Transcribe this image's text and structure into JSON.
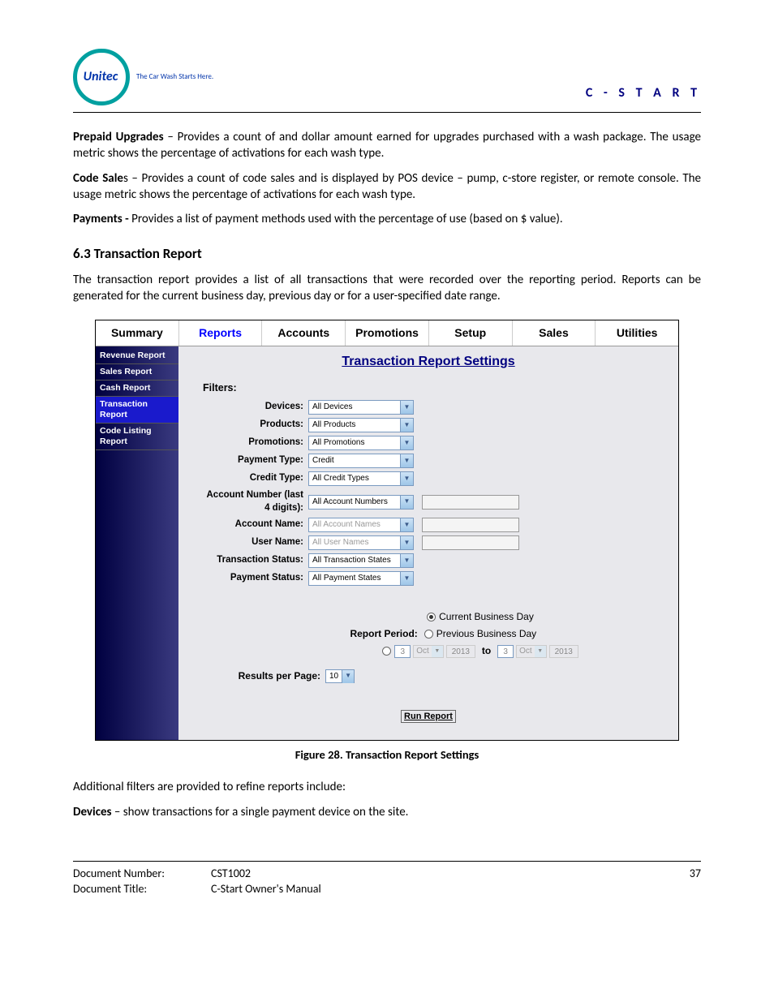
{
  "header": {
    "logo_text": "Unitec",
    "tagline": "The Car Wash Starts Here.",
    "right_text": "C - S T A R T"
  },
  "body": {
    "p1_bold": "Prepaid Upgrades",
    "p1_text": " – Provides a count of and dollar amount earned for upgrades purchased with a wash package. The usage metric shows the percentage of activations for each wash type.",
    "p2_bold": "Code Sale",
    "p2_text": "s – Provides a count of code sales and is displayed by POS device – pump, c-store register, or remote console. The usage metric shows the percentage of activations for each wash type.",
    "p3_bold": "Payments - ",
    "p3_text": "Provides a list of payment methods used with the percentage of use (based on $ value).",
    "h2": "6.3   Transaction Report",
    "p4": "The transaction report provides a list of all transactions that were recorded over the reporting period. Reports can be generated for the current business day, previous day or for a user-specified date range.",
    "p5": "Additional filters are provided to refine reports include:",
    "p6_bold": "Devices",
    "p6_text": " – show transactions for a single payment device on the site."
  },
  "screenshot": {
    "tabs": [
      "Summary",
      "Reports",
      "Accounts",
      "Promotions",
      "Setup",
      "Sales",
      "Utilities"
    ],
    "active_tab": 1,
    "sidebar": [
      {
        "label": "Revenue Report",
        "selected": false
      },
      {
        "label": "Sales Report",
        "selected": false
      },
      {
        "label": "Cash Report",
        "selected": false
      },
      {
        "label": "Transaction Report",
        "selected": true
      },
      {
        "label": "Code Listing Report",
        "selected": false
      }
    ],
    "title": "Transaction Report Settings",
    "filters_label": "Filters:",
    "filters": [
      {
        "label": "Devices:",
        "value": "All Devices",
        "extra": false,
        "disabled": false
      },
      {
        "label": "Products:",
        "value": "All Products",
        "extra": false,
        "disabled": false
      },
      {
        "label": "Promotions:",
        "value": "All Promotions",
        "extra": false,
        "disabled": false
      },
      {
        "label": "Payment Type:",
        "value": "Credit",
        "extra": false,
        "disabled": false
      },
      {
        "label": "Credit Type:",
        "value": "All Credit Types",
        "extra": false,
        "disabled": false
      },
      {
        "label": "Account Number (last 4 digits):",
        "value": "All Account Numbers",
        "extra": true,
        "disabled": false
      },
      {
        "label": "Account Name:",
        "value": "All Account Names",
        "extra": true,
        "disabled": true
      },
      {
        "label": "User Name:",
        "value": "All User Names",
        "extra": true,
        "disabled": true
      },
      {
        "label": "Transaction Status:",
        "value": "All Transaction States",
        "extra": false,
        "disabled": false
      },
      {
        "label": "Payment Status:",
        "value": "All Payment States",
        "extra": false,
        "disabled": false
      }
    ],
    "report_period": {
      "label": "Report Period:",
      "opt1": "Current Business Day",
      "opt2": "Previous Business Day",
      "date_from": {
        "day": "3",
        "month": "Oct",
        "year": "2013"
      },
      "to": "to",
      "date_to": {
        "day": "3",
        "month": "Oct",
        "year": "2013"
      }
    },
    "results": {
      "label": "Results per Page:",
      "value": "10"
    },
    "run": "Run Report",
    "caption": "Figure 28. Transaction Report Settings"
  },
  "footer": {
    "doc_num_label": "Document Number:",
    "doc_num": "CST1002",
    "doc_title_label": "Document Title:",
    "doc_title": "C-Start Owner's Manual",
    "page": "37"
  }
}
